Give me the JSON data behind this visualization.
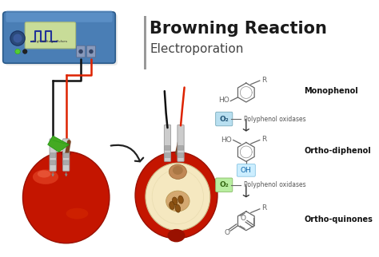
{
  "title": "Browning Reaction",
  "subtitle": "Electroporation",
  "title_fontsize": 15,
  "subtitle_fontsize": 11,
  "bg_color": "#ffffff",
  "title_color": "#1a1a1a",
  "subtitle_color": "#444444",
  "divider_color": "#999999",
  "label_monophenol": "Monophenol",
  "label_orthodiphenol": "Ortho-diphenol",
  "label_orthoquinones": "Ortho-quinones",
  "label_polyphenol1": "Polyphenol oxidases",
  "label_polyphenol2": "Polyphenol oxidases",
  "label_o2_1": "O₂",
  "label_o2_2": "O₂",
  "label_r": "R",
  "label_ho": "HO",
  "label_oh": "OH",
  "label_o_top": "O",
  "label_o_bottom": "O",
  "device_color": "#4a7eb5",
  "device_dark": "#2a5a8a",
  "device_light": "#6a9ed5",
  "screen_color": "#d8f0b0",
  "electrode_color": "#d0d0d0",
  "wire_red": "#dd2200",
  "wire_black": "#111111",
  "apple_red": "#c41500",
  "apple_mid": "#dd3300",
  "apple_light_red": "#ee5533",
  "apple_flesh": "#f5e8c0",
  "apple_flesh2": "#ede0b0",
  "apple_dark_red": "#991100",
  "apple_core": "#d4a870",
  "leaf_color": "#44aa22",
  "leaf_dark": "#229911",
  "stem_color": "#774422",
  "arrow_color": "#222222",
  "o2_box_color1": "#b8dff0",
  "o2_box_color2": "#b8eea0",
  "bond_color": "#666666",
  "text_label_fontsize": 7,
  "chemical_fontsize": 6.5,
  "o2_fontsize": 6.5,
  "polyphenol_fontsize": 5.5
}
